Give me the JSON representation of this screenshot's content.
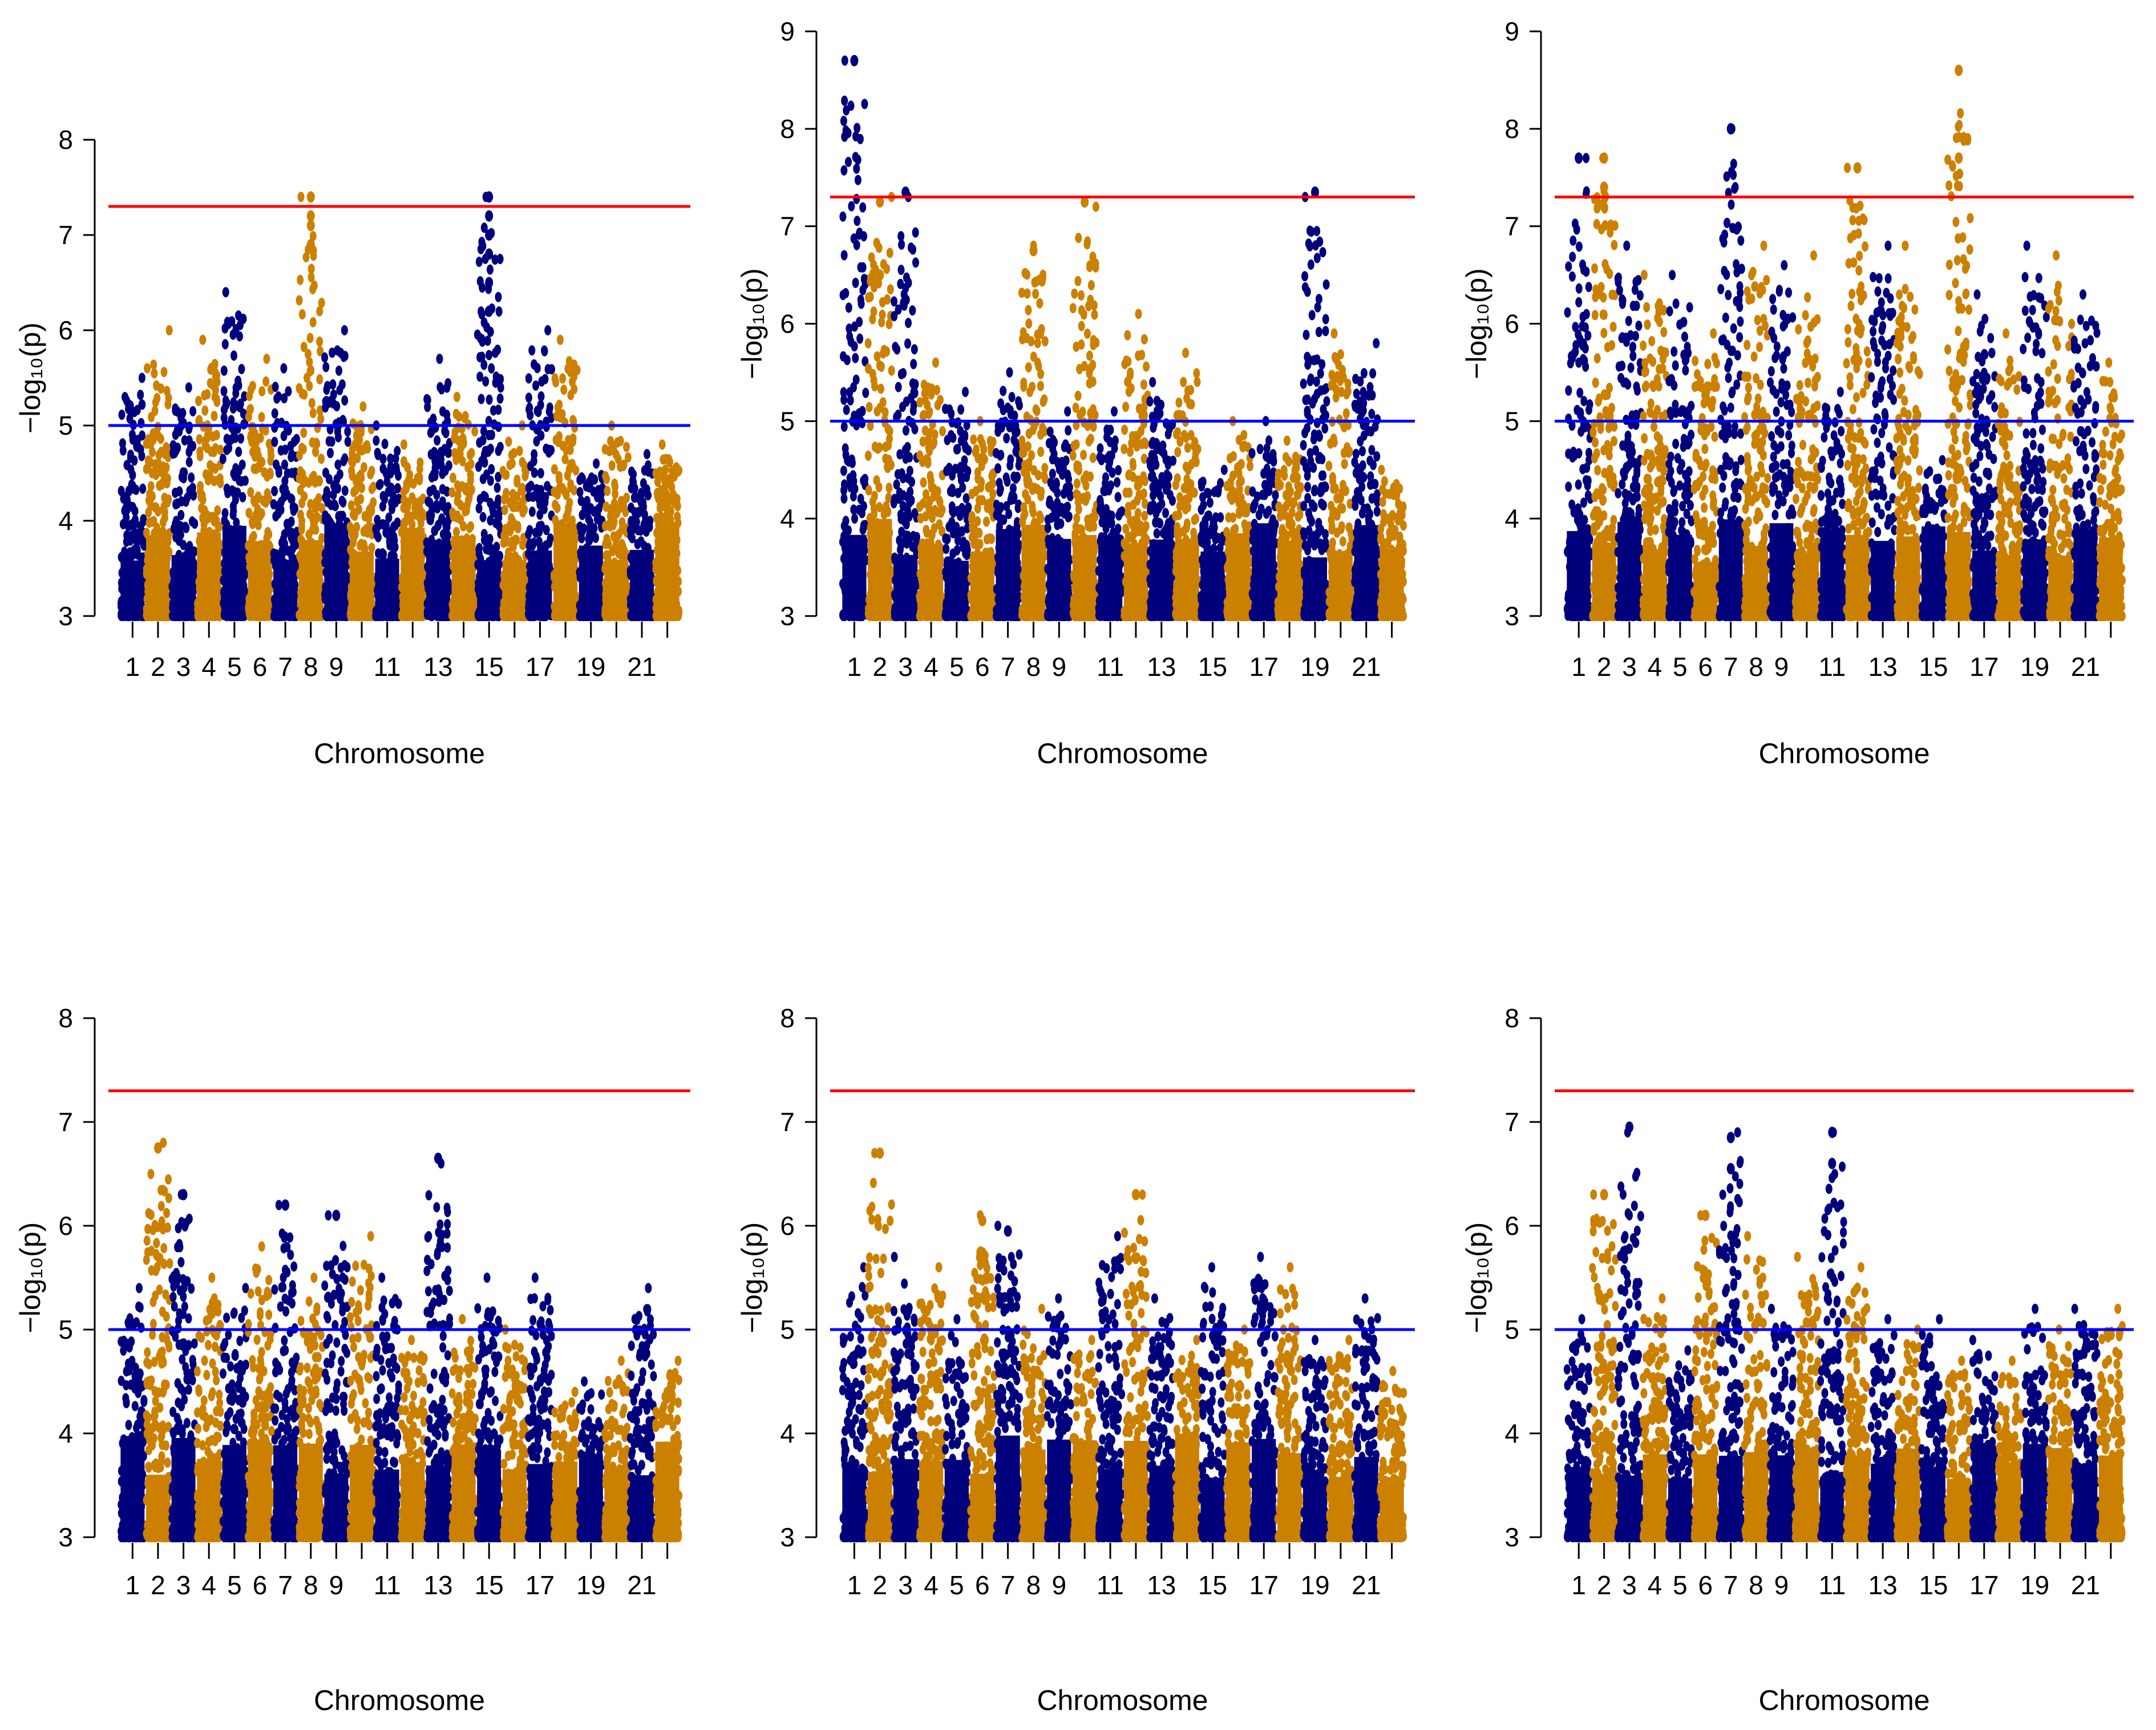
{
  "figure": {
    "colors": {
      "odd_chromosome": "#00007d",
      "even_chromosome": "#cc8000",
      "genome_wide_line": "#ff0000",
      "suggestive_line": "#0000ff",
      "axis": "#000000"
    },
    "x_tick_labels": [
      "1",
      "2",
      "3",
      "4",
      "5",
      "6",
      "7",
      "8",
      "9",
      "11",
      "13",
      "15",
      "17",
      "19",
      "21"
    ]
  },
  "chart_data": [
    {
      "panel": "top-left",
      "type": "scatter",
      "xlabel": "Chromosome",
      "ylabel": "−log₁₀(p)",
      "ylim": [
        3,
        8
      ],
      "y_ticks": [
        "3",
        "4",
        "5",
        "6",
        "7",
        "8"
      ],
      "thresholds": {
        "genome_wide": 7.3,
        "suggestive": 5
      },
      "chromosomes": 22,
      "chrom_max_y": [
        5.5,
        6.0,
        5.4,
        5.9,
        6.4,
        5.7,
        5.6,
        7.4,
        6.0,
        5.2,
        5.0,
        4.8,
        5.7,
        5.3,
        7.4,
        5.0,
        6.0,
        5.9,
        4.6,
        5.0,
        4.7,
        4.8
      ],
      "top_hits": [
        {
          "chromosome": 8,
          "y": 7.4
        },
        {
          "chromosome": 8,
          "y": 7.2
        },
        {
          "chromosome": 8,
          "y": 7.1
        },
        {
          "chromosome": 8,
          "y": 6.9
        },
        {
          "chromosome": 15,
          "y": 7.4
        },
        {
          "chromosome": 15,
          "y": 7.2
        },
        {
          "chromosome": 15,
          "y": 7.0
        },
        {
          "chromosome": 15,
          "y": 6.8
        },
        {
          "chromosome": 15,
          "y": 6.5
        },
        {
          "chromosome": 15,
          "y": 6.2
        }
      ]
    },
    {
      "panel": "top-middle",
      "type": "scatter",
      "xlabel": "Chromosome",
      "ylabel": "−log₁₀(p)",
      "ylim": [
        3,
        9
      ],
      "y_ticks": [
        "3",
        "4",
        "5",
        "6",
        "7",
        "8",
        "9"
      ],
      "thresholds": {
        "genome_wide": 7.3,
        "suggestive": 5
      },
      "chromosomes": 22,
      "chrom_max_y": [
        8.7,
        7.3,
        7.3,
        5.6,
        5.3,
        5.0,
        5.5,
        6.8,
        5.1,
        7.2,
        5.1,
        6.1,
        5.4,
        5.7,
        4.5,
        5.0,
        5.0,
        4.8,
        7.3,
        5.9,
        5.8,
        4.5
      ],
      "top_hits": [
        {
          "chromosome": 1,
          "y": 8.7
        },
        {
          "chromosome": 2,
          "y": 7.25
        },
        {
          "chromosome": 3,
          "y": 7.35
        },
        {
          "chromosome": 10,
          "y": 7.25
        },
        {
          "chromosome": 19,
          "y": 7.35
        },
        {
          "chromosome": 8,
          "y": 6.75
        },
        {
          "chromosome": 2,
          "y": 6.5
        }
      ]
    },
    {
      "panel": "top-right",
      "type": "scatter",
      "xlabel": "Chromosome",
      "ylabel": "−log₁₀(p)",
      "ylim": [
        3,
        9
      ],
      "y_ticks": [
        "3",
        "4",
        "5",
        "6",
        "7",
        "8",
        "9"
      ],
      "thresholds": {
        "genome_wide": 7.3,
        "suggestive": 5
      },
      "chromosomes": 22,
      "chrom_max_y": [
        7.7,
        7.7,
        6.8,
        6.5,
        6.5,
        5.9,
        8.0,
        6.8,
        6.6,
        6.7,
        5.3,
        7.6,
        6.8,
        6.8,
        4.6,
        8.6,
        6.3,
        5.9,
        6.8,
        6.7,
        6.3,
        5.6
      ],
      "top_hits": [
        {
          "chromosome": 1,
          "y": 7.7
        },
        {
          "chromosome": 2,
          "y": 7.7
        },
        {
          "chromosome": 2,
          "y": 7.4
        },
        {
          "chromosome": 7,
          "y": 8.0
        },
        {
          "chromosome": 12,
          "y": 7.6
        },
        {
          "chromosome": 16,
          "y": 8.6
        },
        {
          "chromosome": 16,
          "y": 7.7
        }
      ]
    },
    {
      "panel": "bottom-left",
      "type": "scatter",
      "xlabel": "Chromosome",
      "ylabel": "−log₁₀(p)",
      "ylim": [
        3,
        8
      ],
      "y_ticks": [
        "3",
        "4",
        "5",
        "6",
        "7",
        "8"
      ],
      "thresholds": {
        "genome_wide": 7.3,
        "suggestive": 5
      },
      "chromosomes": 22,
      "chrom_max_y": [
        5.4,
        6.8,
        6.3,
        5.5,
        5.4,
        5.8,
        6.2,
        5.5,
        6.1,
        5.9,
        5.5,
        4.9,
        6.6,
        5.1,
        5.5,
        5.0,
        5.5,
        4.4,
        4.5,
        4.7,
        5.4,
        4.7
      ],
      "top_hits": [
        {
          "chromosome": 2,
          "y": 6.75
        },
        {
          "chromosome": 13,
          "y": 6.65
        },
        {
          "chromosome": 3,
          "y": 6.3
        },
        {
          "chromosome": 7,
          "y": 6.2
        },
        {
          "chromosome": 9,
          "y": 6.1
        }
      ]
    },
    {
      "panel": "bottom-middle",
      "type": "scatter",
      "xlabel": "Chromosome",
      "ylabel": "−log₁₀(p)",
      "ylim": [
        3,
        8
      ],
      "y_ticks": [
        "3",
        "4",
        "5",
        "6",
        "7",
        "8"
      ],
      "thresholds": {
        "genome_wide": 7.3,
        "suggestive": 5
      },
      "chromosomes": 22,
      "chrom_max_y": [
        5.6,
        6.7,
        5.7,
        5.6,
        5.1,
        6.1,
        6.0,
        5.2,
        5.3,
        4.9,
        5.9,
        6.3,
        5.3,
        4.9,
        5.6,
        5.0,
        5.7,
        5.6,
        4.9,
        4.9,
        5.3,
        4.6
      ],
      "top_hits": [
        {
          "chromosome": 2,
          "y": 6.7
        },
        {
          "chromosome": 12,
          "y": 6.3
        },
        {
          "chromosome": 6,
          "y": 6.05
        },
        {
          "chromosome": 7,
          "y": 5.95
        }
      ]
    },
    {
      "panel": "bottom-right",
      "type": "scatter",
      "xlabel": "Chromosome",
      "ylabel": "−log₁₀(p)",
      "ylim": [
        3,
        8
      ],
      "y_ticks": [
        "3",
        "4",
        "5",
        "6",
        "7",
        "8"
      ],
      "thresholds": {
        "genome_wide": 7.3,
        "suggestive": 5
      },
      "chromosomes": 22,
      "chrom_max_y": [
        5.1,
        6.3,
        6.9,
        5.3,
        4.8,
        6.1,
        6.9,
        5.9,
        5.2,
        5.7,
        6.9,
        5.6,
        5.1,
        5.0,
        5.1,
        4.7,
        4.9,
        4.7,
        5.2,
        5.0,
        5.2,
        5.2
      ],
      "top_hits": [
        {
          "chromosome": 3,
          "y": 6.95
        },
        {
          "chromosome": 7,
          "y": 6.85
        },
        {
          "chromosome": 11,
          "y": 6.9
        },
        {
          "chromosome": 11,
          "y": 6.6
        },
        {
          "chromosome": 7,
          "y": 6.55
        },
        {
          "chromosome": 2,
          "y": 6.3
        },
        {
          "chromosome": 6,
          "y": 6.1
        }
      ]
    }
  ]
}
